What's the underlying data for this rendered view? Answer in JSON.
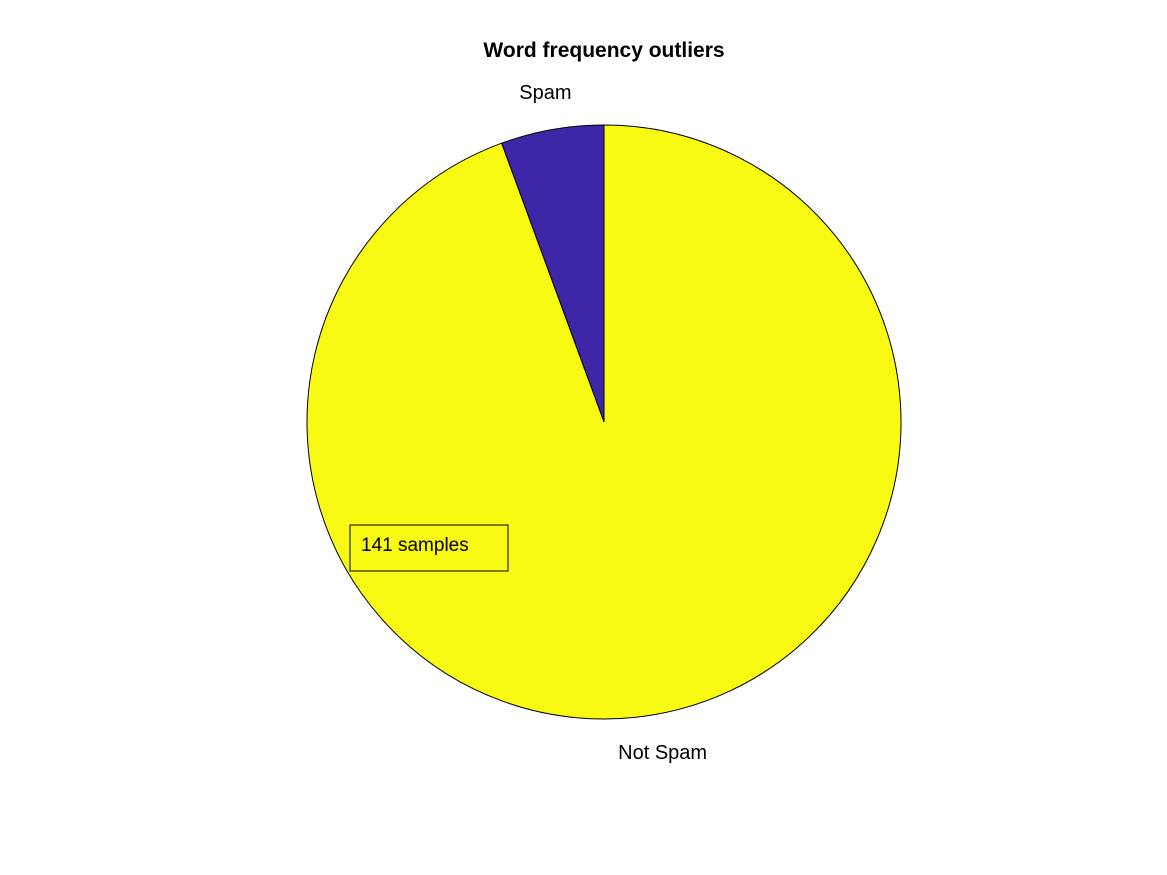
{
  "chart_data": {
    "type": "pie",
    "title": "Word frequency outliers",
    "start_angle_deg": 90,
    "direction": "counterclockwise",
    "slices": [
      {
        "label": "Spam",
        "value": 0.056,
        "color": "#3D26A8"
      },
      {
        "label": "Not Spam",
        "value": 0.944,
        "color": "#F9FA14"
      }
    ],
    "annotation": {
      "text": "141 samples",
      "slice": "Not Spam"
    },
    "edge_color": "#000000"
  }
}
